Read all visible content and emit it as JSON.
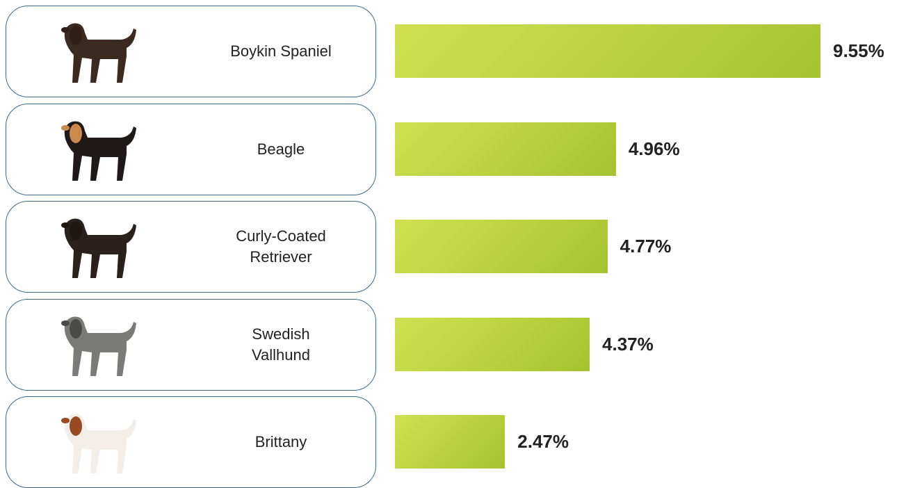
{
  "chart_data": {
    "type": "bar",
    "categories": [
      "Boykin Spaniel",
      "Beagle",
      "Curly-Coated Retriever",
      "Swedish Vallhund",
      "Brittany"
    ],
    "values": [
      9.55,
      4.96,
      4.77,
      4.37,
      2.47
    ],
    "value_labels": [
      "9.55%",
      "4.96%",
      "4.77%",
      "4.37%",
      "2.47%"
    ],
    "color": "#b9d13c"
  }
}
